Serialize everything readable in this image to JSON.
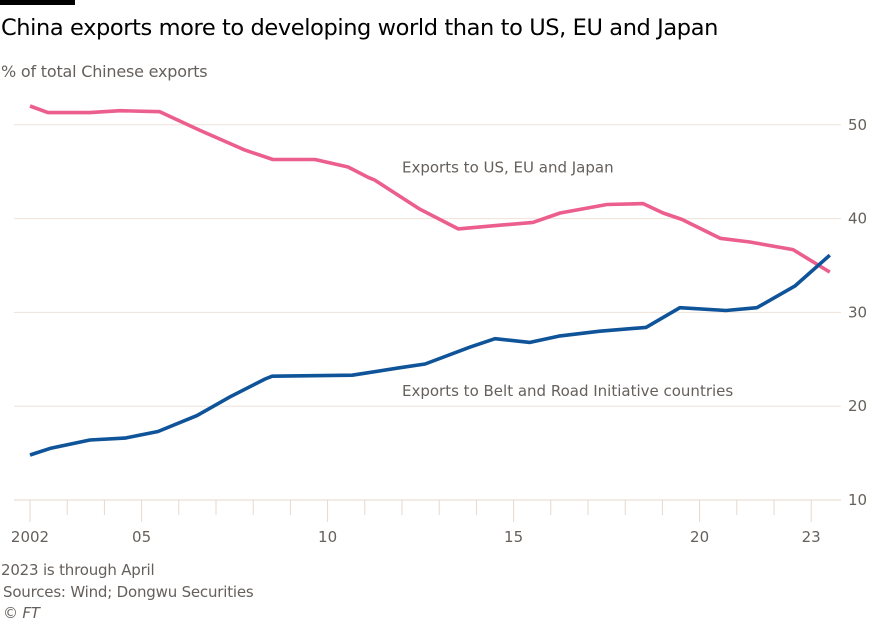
{
  "title": "China exports more to developing world than to US, EU and Japan",
  "subtitle": "% of total Chinese exports",
  "footnotes": {
    "note": "2023 is through April",
    "sources": "Sources: Wind; Dongwu Securities",
    "copyright": "© FT"
  },
  "chart_data": {
    "type": "line",
    "title": "China exports more to developing world than to US, EU and Japan",
    "ylabel": "% of total Chinese exports",
    "xlabel": "",
    "xlim": [
      2002,
      2023.5
    ],
    "ylim": [
      10,
      52
    ],
    "grid": true,
    "y_axis_side": "right",
    "y_ticks": [
      10,
      20,
      30,
      40,
      50
    ],
    "x_ticks": [
      2002,
      2003,
      2004,
      2005,
      2006,
      2007,
      2008,
      2009,
      2010,
      2011,
      2012,
      2013,
      2014,
      2015,
      2016,
      2017,
      2018,
      2019,
      2020,
      2021,
      2022,
      2023
    ],
    "x_tick_labels": [
      {
        "year": 2002,
        "label": "2002"
      },
      {
        "year": 2005,
        "label": "05"
      },
      {
        "year": 2010,
        "label": "10"
      },
      {
        "year": 2015,
        "label": "15"
      },
      {
        "year": 2020,
        "label": "20"
      },
      {
        "year": 2023,
        "label": "23"
      }
    ],
    "colors": {
      "grid": "#eee3d9",
      "axis": "#e6d9ce",
      "tick_text": "#66605c"
    },
    "series": [
      {
        "name": "Exports to US, EU and Japan",
        "color": "#eb5e8d",
        "label_anchor": {
          "year": 2012.0,
          "value": 44.9
        },
        "points": [
          [
            2002.0,
            52.0
          ],
          [
            2002.48,
            51.3
          ],
          [
            2003.61,
            51.3
          ],
          [
            2004.42,
            51.5
          ],
          [
            2005.49,
            51.4
          ],
          [
            2006.57,
            49.4
          ],
          [
            2007.78,
            47.3
          ],
          [
            2008.53,
            46.3
          ],
          [
            2009.66,
            46.3
          ],
          [
            2010.55,
            45.5
          ],
          [
            2011.09,
            44.4
          ],
          [
            2011.27,
            44.1
          ],
          [
            2012.48,
            41.0
          ],
          [
            2013.51,
            38.9
          ],
          [
            2014.63,
            39.3
          ],
          [
            2015.52,
            39.6
          ],
          [
            2016.25,
            40.6
          ],
          [
            2017.51,
            41.5
          ],
          [
            2018.48,
            41.6
          ],
          [
            2019.02,
            40.6
          ],
          [
            2019.53,
            39.9
          ],
          [
            2020.55,
            37.9
          ],
          [
            2021.35,
            37.5
          ],
          [
            2022.51,
            36.7
          ],
          [
            2023.5,
            34.3
          ]
        ]
      },
      {
        "name": "Exports to Belt and Road Initiative countries",
        "color": "#0f5499",
        "label_anchor": {
          "year": 2012.0,
          "value": 21.1
        },
        "points": [
          [
            2002.0,
            14.8
          ],
          [
            2002.54,
            15.5
          ],
          [
            2003.61,
            16.4
          ],
          [
            2004.55,
            16.6
          ],
          [
            2005.44,
            17.3
          ],
          [
            2006.49,
            19.0
          ],
          [
            2007.38,
            21.0
          ],
          [
            2008.32,
            22.9
          ],
          [
            2008.51,
            23.2
          ],
          [
            2010.66,
            23.3
          ],
          [
            2011.95,
            24.1
          ],
          [
            2012.62,
            24.5
          ],
          [
            2013.83,
            26.3
          ],
          [
            2014.5,
            27.2
          ],
          [
            2015.44,
            26.8
          ],
          [
            2016.25,
            27.5
          ],
          [
            2017.32,
            28.0
          ],
          [
            2018.56,
            28.4
          ],
          [
            2019.47,
            30.5
          ],
          [
            2020.71,
            30.2
          ],
          [
            2021.54,
            30.5
          ],
          [
            2022.56,
            32.8
          ],
          [
            2023.5,
            36.1
          ]
        ]
      }
    ]
  }
}
